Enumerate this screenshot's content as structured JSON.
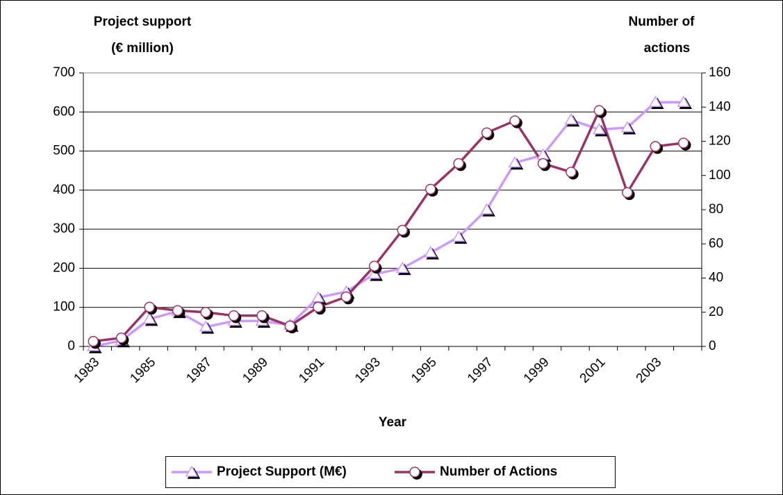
{
  "chart_data": {
    "type": "line",
    "ylabel": [
      "Project support",
      "(€ million)"
    ],
    "y2label": [
      "Number of",
      "actions"
    ],
    "xlabel": "Year",
    "categories": [
      "1983",
      null,
      "1985",
      null,
      "1987",
      null,
      "1989",
      null,
      "1991",
      null,
      "1993",
      null,
      "1995",
      null,
      "1997",
      null,
      "1999",
      null,
      "2001",
      null,
      "2003",
      null
    ],
    "series": [
      {
        "name": "Project Support (M€)",
        "color": "#cc99ff",
        "marker": "triangle",
        "axis": "y",
        "values": [
          0,
          15,
          70,
          90,
          50,
          65,
          65,
          55,
          125,
          140,
          185,
          200,
          240,
          280,
          350,
          470,
          490,
          580,
          555,
          560,
          625,
          625
        ]
      },
      {
        "name": "Number of Actions",
        "color": "#993366",
        "marker": "circle",
        "axis": "y2",
        "values": [
          3,
          5,
          23,
          21,
          20,
          18,
          18,
          12,
          23,
          29,
          47,
          68,
          92,
          107,
          125,
          132,
          107,
          102,
          138,
          90,
          117,
          119
        ]
      }
    ],
    "ylim": [
      0,
      700
    ],
    "yticks": [
      0,
      100,
      200,
      300,
      400,
      500,
      600,
      700
    ],
    "y2lim": [
      0,
      160
    ],
    "y2ticks": [
      0,
      20,
      40,
      60,
      80,
      100,
      120,
      140,
      160
    ],
    "grid": true,
    "legend": "bottom"
  }
}
